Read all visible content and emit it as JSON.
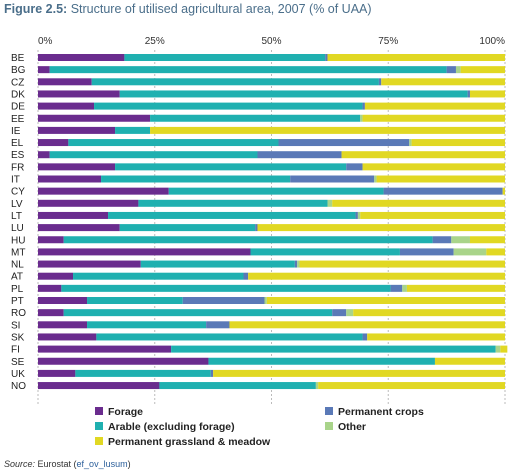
{
  "header": {
    "figure_label": "Figure 2.5:",
    "title": "Structure of utilised agricultural area, 2007 (% of UAA)"
  },
  "source": {
    "prefix": "Source: ",
    "text": "Eurostat (",
    "link": "ef_ov_lusum",
    "suffix": ")"
  },
  "colors": {
    "forage": "#6a2c8e",
    "arable": "#1fb0b0",
    "permanent_crops": "#5a79b7",
    "other": "#a9d48a",
    "grassland": "#e1d823"
  },
  "chart_data": {
    "type": "bar",
    "orientation": "horizontal",
    "stacked": true,
    "title": "",
    "xlabel": "",
    "ylabel": "",
    "xlim": [
      0,
      100
    ],
    "xticks": [
      "0%",
      "25%",
      "50%",
      "75%",
      "100%"
    ],
    "grid": true,
    "legend_position": "bottom",
    "categories": [
      "BE",
      "BG",
      "CZ",
      "DK",
      "DE",
      "EE",
      "IE",
      "EL",
      "ES",
      "FR",
      "IT",
      "CY",
      "LV",
      "LT",
      "LU",
      "HU",
      "MT",
      "NL",
      "AT",
      "PL",
      "PT",
      "RO",
      "SI",
      "SK",
      "FI",
      "SE",
      "UK",
      "NO"
    ],
    "series": [
      {
        "name": "Forage",
        "key": "forage",
        "values": [
          18.5,
          2.5,
          11.5,
          17.5,
          12.0,
          24.0,
          16.5,
          6.5,
          2.5,
          16.5,
          13.5,
          28.0,
          21.5,
          15.0,
          17.5,
          5.5,
          45.5,
          22.0,
          7.5,
          5.0,
          10.5,
          5.5,
          10.5,
          12.5,
          28.5,
          36.5,
          8.0,
          26.0
        ]
      },
      {
        "name": "Arable (excluding forage)",
        "key": "arable",
        "values": [
          43.0,
          85.0,
          61.5,
          74.5,
          57.5,
          45.0,
          7.5,
          45.0,
          44.5,
          49.5,
          40.5,
          46.0,
          40.5,
          53.0,
          29.0,
          79.0,
          32.0,
          33.0,
          36.5,
          70.5,
          20.5,
          57.5,
          25.5,
          57.0,
          69.5,
          48.5,
          29.0,
          33.5
        ]
      },
      {
        "name": "Permanent crops",
        "key": "permanent_crops",
        "values": [
          0.5,
          2.0,
          0.5,
          0.5,
          0.5,
          0.0,
          0.0,
          28.0,
          18.0,
          3.5,
          18.0,
          25.5,
          0.0,
          0.5,
          0.5,
          4.0,
          11.5,
          0.5,
          1.0,
          2.5,
          17.5,
          3.0,
          5.0,
          1.0,
          0.0,
          0.0,
          0.5,
          0.0
        ]
      },
      {
        "name": "Other",
        "key": "other",
        "values": [
          0.0,
          1.0,
          0.0,
          0.0,
          0.0,
          0.5,
          0.0,
          0.5,
          0.0,
          0.0,
          0.5,
          0.0,
          1.0,
          0.5,
          0.0,
          4.0,
          7.0,
          0.5,
          0.0,
          1.0,
          0.5,
          1.5,
          0.0,
          0.0,
          1.0,
          0.0,
          0.0,
          0.5
        ]
      },
      {
        "name": "Permanent grassland & meadow",
        "key": "grassland",
        "values": [
          38.0,
          9.5,
          26.5,
          7.5,
          30.0,
          30.5,
          76.0,
          20.0,
          35.0,
          30.5,
          27.5,
          0.5,
          37.0,
          31.0,
          53.0,
          7.5,
          4.0,
          44.0,
          55.0,
          21.0,
          51.0,
          32.5,
          59.0,
          29.5,
          1.5,
          15.0,
          62.5,
          40.0
        ]
      }
    ]
  },
  "legend": {
    "items": [
      {
        "label": "Forage",
        "key": "forage"
      },
      {
        "label": "Arable (excluding forage)",
        "key": "arable"
      },
      {
        "label": "Permanent grassland & meadow",
        "key": "grassland"
      },
      {
        "label": "Permanent crops",
        "key": "permanent_crops"
      },
      {
        "label": "Other",
        "key": "other"
      }
    ]
  }
}
